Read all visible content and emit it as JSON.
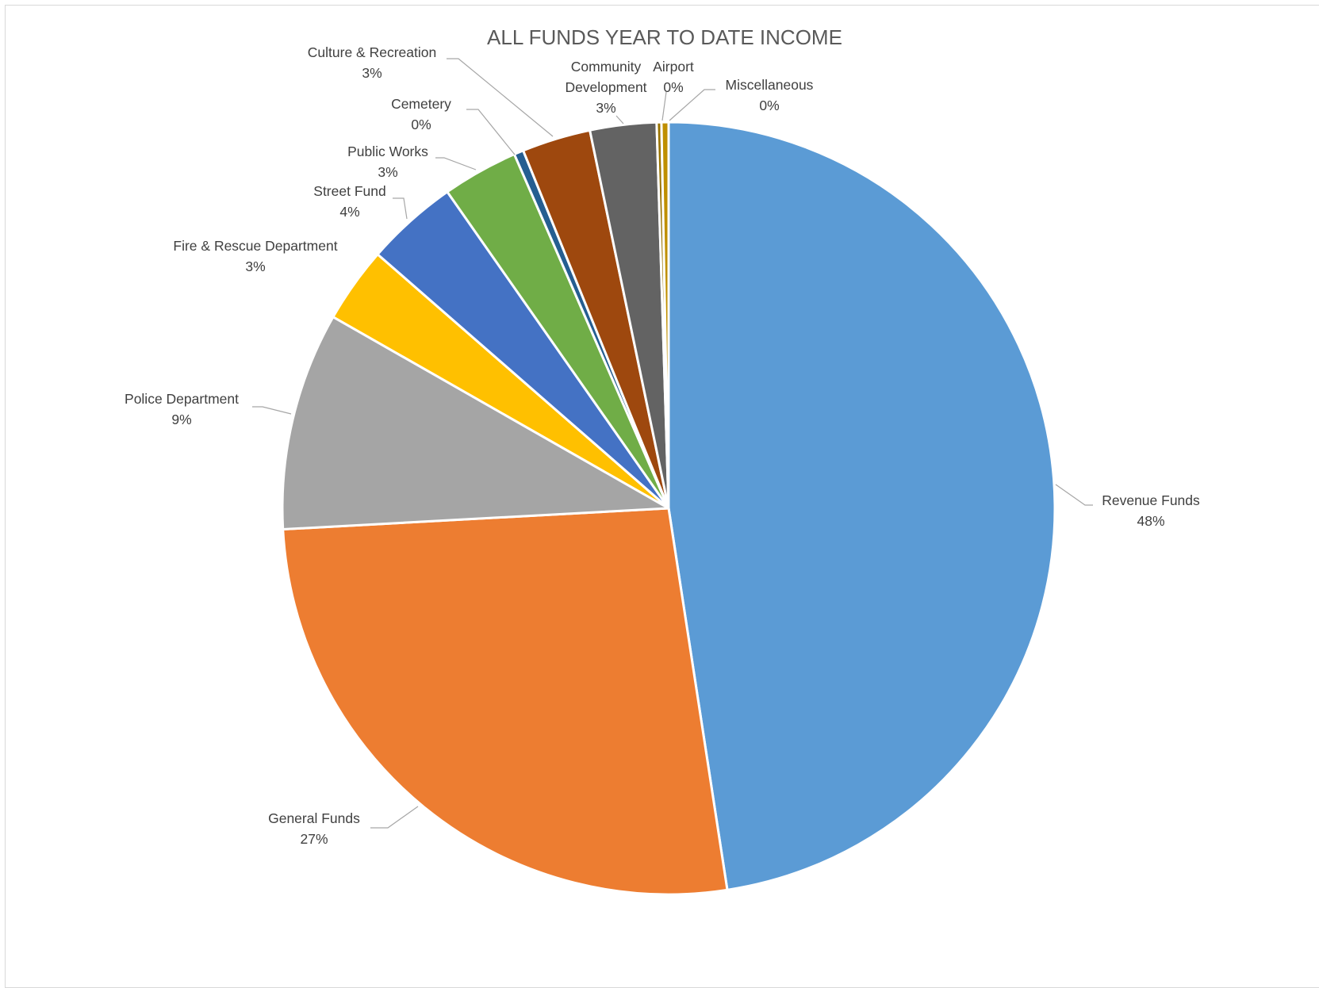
{
  "chart_data": {
    "type": "pie",
    "title": "ALL FUNDS YEAR TO DATE INCOME",
    "legend": "none",
    "slices": [
      {
        "label": "Revenue Funds",
        "value": 48.0,
        "display": "48%",
        "color": "#5b9bd5"
      },
      {
        "label": "General Funds",
        "value": 26.8,
        "display": "27%",
        "color": "#ed7d31"
      },
      {
        "label": "Police Department",
        "value": 9.2,
        "display": "9%",
        "color": "#a5a5a5"
      },
      {
        "label": "Fire & Rescue Department",
        "value": 3.2,
        "display": "3%",
        "color": "#ffc000"
      },
      {
        "label": "Street Fund",
        "value": 3.9,
        "display": "4%",
        "color": "#4472c4"
      },
      {
        "label": "Public Works",
        "value": 3.2,
        "display": "3%",
        "color": "#70ad47"
      },
      {
        "label": "Cemetery",
        "value": 0.4,
        "display": "0%",
        "color": "#255e91"
      },
      {
        "label": "Culture & Recreation",
        "value": 2.9,
        "display": "3%",
        "color": "#9e480e"
      },
      {
        "label": "Community Development",
        "value": 2.8,
        "display": "3%",
        "color": "#636363"
      },
      {
        "label": "Airport",
        "value": 0.2,
        "display": "0%",
        "color": "#997300"
      },
      {
        "label": "Miscellaneous",
        "value": 0.3,
        "display": "0%",
        "color": "#bf8f00"
      }
    ]
  }
}
